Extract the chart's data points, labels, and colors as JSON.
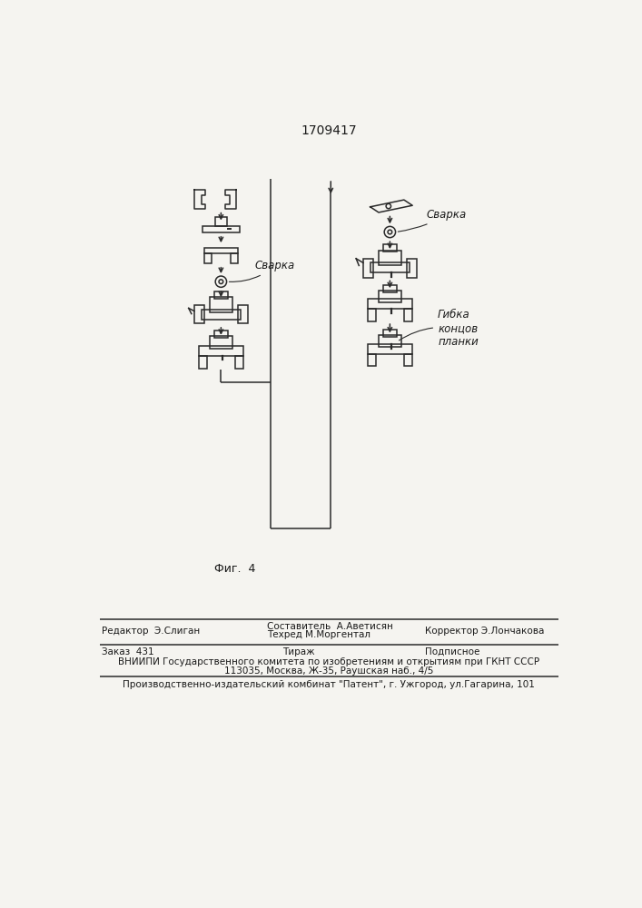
{
  "title": "1709417",
  "fig_caption": "Фиг.  4",
  "background_color": "#f5f4f0",
  "text_color": "#1a1a1a",
  "footer_line1_col1": "Редактор  Э.Слиган",
  "footer_line1_col2a": "Составитель  А.Аветисян",
  "footer_line1_col2b": "Техред М.Моргентал",
  "footer_line1_col3": "Корректор Э.Лончакова",
  "footer_line2_col1": "Заказ  431",
  "footer_line2_col2": "Тираж",
  "footer_line2_col3": "Подписное",
  "footer_line3": "ВНИИПИ Государственного комитета по изобретениям и открытиям при ГКНТ СССР",
  "footer_line4": "113035, Москва, Ж-35, Раушская наб., 4/5",
  "footer_line5": "Производственно-издательский комбинат \"Патент\", г. Ужгород, ул.Гагарина, 101",
  "svarка_label": "Сварка",
  "gibka_label": "Гибка\nконцов\nпланки",
  "line_color": "#2a2a2a",
  "lw": 1.1
}
